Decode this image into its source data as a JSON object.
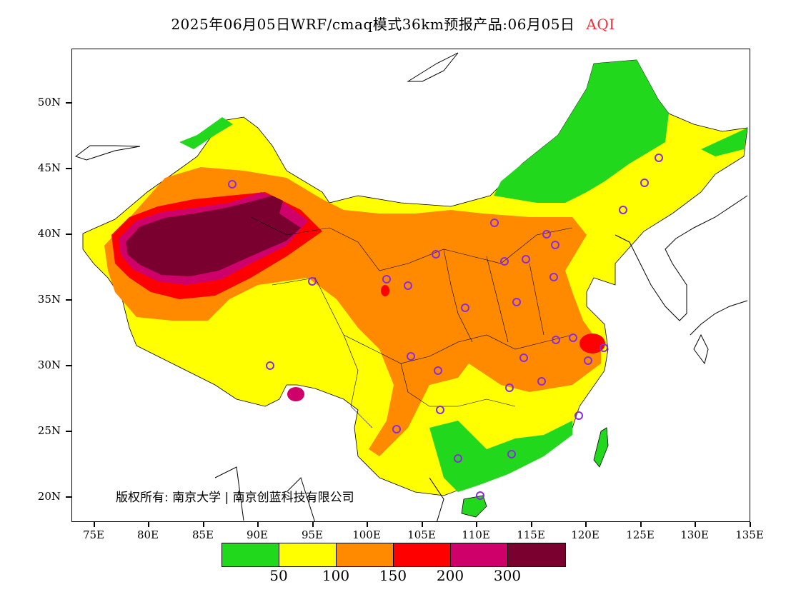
{
  "header": {
    "title": "2025年06月05日WRF/cmaq模式36km预报产品:06月05日",
    "variable": "AQI"
  },
  "colors": {
    "good": "#22d81c",
    "moderate": "#ffff00",
    "sensitive": "#ff8a00",
    "unhealthy": "#ff0000",
    "very_unhealthy": "#d0006a",
    "hazardous": "#7a0030",
    "variable_label": "#e8303b",
    "station_marker": "#8a2be2"
  },
  "axes": {
    "y_labels": [
      "50N",
      "45N",
      "40N",
      "35N",
      "30N",
      "25N",
      "20N"
    ],
    "x_labels": [
      "75E",
      "80E",
      "85E",
      "90E",
      "95E",
      "100E",
      "105E",
      "110E",
      "115E",
      "120E",
      "125E",
      "130E",
      "135E"
    ]
  },
  "copyright": "版权所有: 南京大学 | 南京创蓝科技有限公司",
  "legend": {
    "swatch_colors": [
      "#22d81c",
      "#ffff00",
      "#ff8a00",
      "#ff0000",
      "#d0006a",
      "#7a0030"
    ],
    "labels": [
      "50",
      "100",
      "150",
      "200",
      "300"
    ]
  }
}
